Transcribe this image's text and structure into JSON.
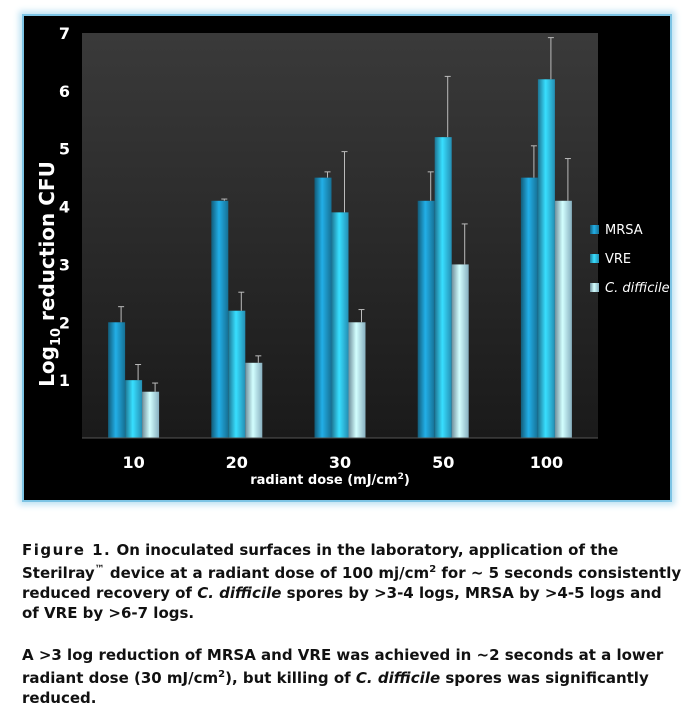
{
  "chart_data": {
    "type": "bar",
    "categories": [
      "10",
      "20",
      "30",
      "50",
      "100"
    ],
    "series": [
      {
        "name": "MRSA",
        "values": [
          2.0,
          4.1,
          4.5,
          4.1,
          4.5
        ],
        "errors": [
          0.27,
          0.03,
          0.1,
          0.5,
          0.55
        ],
        "color": "#1b8cb9"
      },
      {
        "name": "VRE",
        "values": [
          1.0,
          2.2,
          3.9,
          5.2,
          6.2
        ],
        "errors": [
          0.27,
          0.32,
          1.05,
          1.05,
          0.72
        ],
        "color": "#2db2e0"
      },
      {
        "name": "C. difficile",
        "values": [
          0.8,
          1.3,
          2.0,
          3.0,
          4.1
        ],
        "errors": [
          0.15,
          0.12,
          0.22,
          0.7,
          0.73
        ],
        "color": "#a9dbef"
      }
    ],
    "ylabel_main": "Log",
    "ylabel_sub": "10",
    "ylabel_rest": " reduction CFU",
    "xlabel_main": "radiant dose (mJ/cm",
    "xlabel_sup": "2",
    "xlabel_end": ")",
    "ylim": [
      0,
      7
    ],
    "yticks": [
      1,
      2,
      3,
      4,
      5,
      6,
      7
    ],
    "legend_position": "right"
  },
  "caption": {
    "fig_label": "Figure 1.",
    "p1_a": " On inoculated surfaces in the laboratory, application of the Sterilray",
    "p1_tm": "™",
    "p1_b": " device at a radiant dose of 100 mj/cm",
    "p1_sup": "2",
    "p1_c": " for ~ 5 seconds consistently reduced recovery of ",
    "p1_cdiff": "C. difficile",
    "p1_d": " spores by >3-4 logs, MRSA by >4-5 logs and of VRE by >6-7 logs.",
    "p2_a": " A >3 log reduction of MRSA and VRE was achieved in ~2 seconds at a lower radiant dose (30 mJ/cm",
    "p2_sup": "2",
    "p2_b": "), but killing of ",
    "p2_cdiff": "C. difficile",
    "p2_c": " spores was significantly reduced."
  }
}
